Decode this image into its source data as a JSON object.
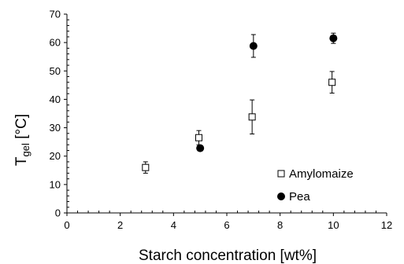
{
  "chart_data": {
    "type": "scatter",
    "xlabel": "Starch concentration [wt%]",
    "ylabel_main": "T",
    "ylabel_sub": "gel",
    "ylabel_unit": " [°C]",
    "xlim": [
      0,
      12
    ],
    "ylim": [
      0,
      70
    ],
    "x_ticks": [
      0,
      2,
      4,
      6,
      8,
      10,
      12
    ],
    "y_ticks": [
      0,
      10,
      20,
      30,
      40,
      50,
      60,
      70
    ],
    "grid": false,
    "legend_position": "bottom-right",
    "series": [
      {
        "name": "Amylomaize",
        "marker": "open-square",
        "color": "#000000",
        "points": [
          {
            "x": 2.95,
            "y": 16.0,
            "err": 2.0
          },
          {
            "x": 4.95,
            "y": 26.5,
            "err": 2.5
          },
          {
            "x": 6.95,
            "y": 33.8,
            "err": 6.0
          },
          {
            "x": 9.95,
            "y": 46.0,
            "err": 3.8
          }
        ]
      },
      {
        "name": "Pea",
        "marker": "filled-circle",
        "color": "#000000",
        "points": [
          {
            "x": 5.0,
            "y": 22.8,
            "err": 0
          },
          {
            "x": 7.0,
            "y": 58.8,
            "err": 4.0
          },
          {
            "x": 10.0,
            "y": 61.5,
            "err": 1.8
          }
        ]
      }
    ]
  }
}
